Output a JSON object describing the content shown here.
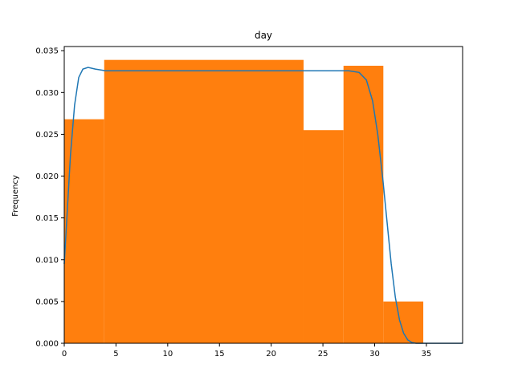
{
  "chart_data": {
    "type": "bar",
    "title": "day",
    "xlabel": "",
    "ylabel": "Frequency",
    "xlim": [
      0,
      38.5
    ],
    "ylim": [
      0,
      0.0355
    ],
    "xticks": [
      0,
      5,
      10,
      15,
      20,
      25,
      30,
      35
    ],
    "yticks": [
      0.0,
      0.005,
      0.01,
      0.015,
      0.02,
      0.025,
      0.03,
      0.035
    ],
    "ytick_labels": [
      "0.000",
      "0.005",
      "0.010",
      "0.015",
      "0.020",
      "0.025",
      "0.030",
      "0.035"
    ],
    "grid": false,
    "histogram": {
      "color": "#ff7f0e",
      "bins": [
        {
          "x0": 0.0,
          "x1": 3.86,
          "value": 0.0268
        },
        {
          "x0": 3.86,
          "x1": 23.13,
          "value": 0.0339
        },
        {
          "x0": 23.13,
          "x1": 26.99,
          "value": 0.0255
        },
        {
          "x0": 26.99,
          "x1": 30.84,
          "value": 0.0332
        },
        {
          "x0": 30.84,
          "x1": 34.7,
          "value": 0.005
        }
      ]
    },
    "density": {
      "color": "#1f77b4",
      "points": [
        [
          0.0,
          0.0095
        ],
        [
          0.3,
          0.016
        ],
        [
          0.6,
          0.0225
        ],
        [
          1.0,
          0.0285
        ],
        [
          1.4,
          0.0318
        ],
        [
          1.8,
          0.0328
        ],
        [
          2.3,
          0.033
        ],
        [
          3.0,
          0.0328
        ],
        [
          4.0,
          0.0326
        ],
        [
          6.0,
          0.0326
        ],
        [
          10.0,
          0.0326
        ],
        [
          15.0,
          0.0326
        ],
        [
          20.0,
          0.0326
        ],
        [
          25.0,
          0.0326
        ],
        [
          27.5,
          0.0326
        ],
        [
          28.5,
          0.0324
        ],
        [
          29.2,
          0.0315
        ],
        [
          29.8,
          0.029
        ],
        [
          30.3,
          0.025
        ],
        [
          30.8,
          0.0195
        ],
        [
          31.2,
          0.0145
        ],
        [
          31.6,
          0.0095
        ],
        [
          32.0,
          0.0055
        ],
        [
          32.4,
          0.0028
        ],
        [
          32.8,
          0.0012
        ],
        [
          33.2,
          0.0004
        ],
        [
          33.6,
          0.0001
        ],
        [
          34.0,
          0.0
        ],
        [
          36.0,
          0.0
        ],
        [
          38.5,
          0.0
        ]
      ]
    }
  }
}
